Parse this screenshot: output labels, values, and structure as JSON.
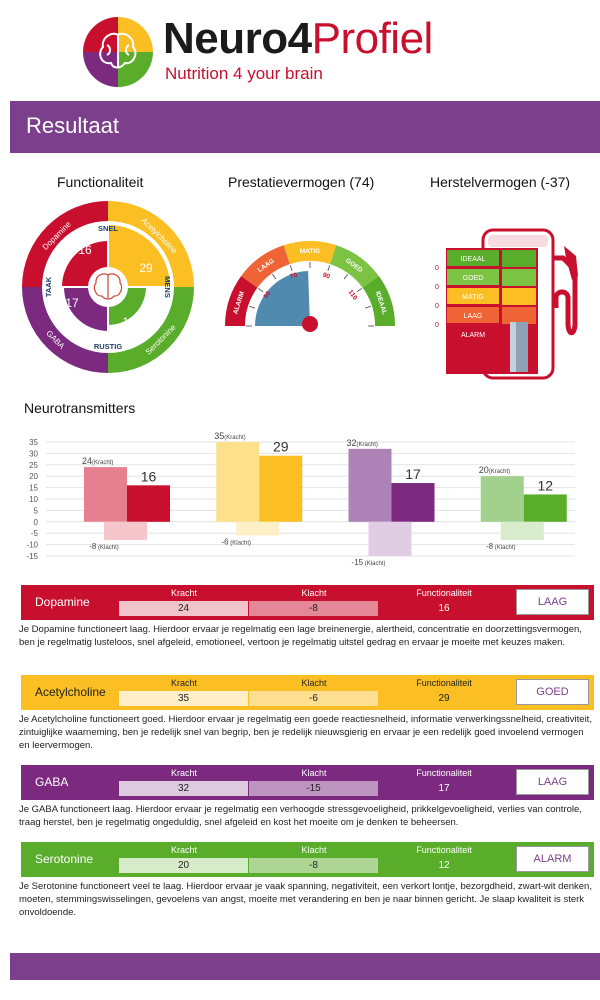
{
  "header": {
    "brand_part1": "Neuro4",
    "brand_part2": "Profiel",
    "tagline": "Nutrition 4 your brain"
  },
  "banner": {
    "title": "Resultaat"
  },
  "panels": {
    "functionaliteit": {
      "title": "Functionaliteit",
      "outer_labels": [
        "Dopamine",
        "Acetylcholine",
        "Serotonine",
        "GABA"
      ],
      "inner_labels": [
        "SNEL",
        "MENS",
        "RUSTIG",
        "TAAK"
      ],
      "values": {
        "dopamine": "16",
        "acetylcholine": "29",
        "serotonine": "12",
        "gaba": "17"
      }
    },
    "prestatie": {
      "title": "Prestatievermogen (74)",
      "value": 74,
      "zones": [
        "ALARM",
        "LAAG",
        "MATIG",
        "GOED",
        "IDEAAL"
      ],
      "ticks": [
        "50",
        "70",
        "90",
        "110"
      ]
    },
    "herstel": {
      "title": "Herstelvermogen (-37)",
      "levels": [
        {
          "label": "IDEAAL",
          "count": "0"
        },
        {
          "label": "GOED",
          "count": "0"
        },
        {
          "label": "MATIG",
          "count": "0"
        },
        {
          "label": "LAAG",
          "count": "0"
        },
        {
          "label": "ALARM",
          "count": ""
        }
      ]
    }
  },
  "neuro_section": {
    "title": "Neurotransmitters"
  },
  "chart_data": {
    "type": "bar",
    "title": "",
    "categories": [
      "Dopamine",
      "Acetylcholine",
      "GABA",
      "Serotonine"
    ],
    "series": [
      {
        "name": "Kracht",
        "values": [
          24,
          35,
          32,
          20
        ]
      },
      {
        "name": "",
        "values": [
          16,
          29,
          17,
          12
        ]
      },
      {
        "name": "Klacht",
        "values": [
          -8,
          -6,
          -15,
          -8
        ]
      }
    ],
    "y_ticks": [
      "35",
      "30",
      "25",
      "20",
      "15",
      "10",
      "5",
      "0",
      "-5",
      "-10",
      "-15"
    ],
    "ylim": [
      -15,
      35
    ],
    "grid": true,
    "kracht_suffix": "(Kracht)",
    "klacht_suffix": "(Klacht)",
    "colors": {
      "Dopamine": [
        "#e6808f",
        "#c8102e",
        "#f5c6cc"
      ],
      "Acetylcholine": [
        "#fde08a",
        "#fbbf24",
        "#fdf0c6"
      ],
      "GABA": [
        "#ad82b7",
        "#7b2a80",
        "#e0cde4"
      ],
      "Serotonine": [
        "#a2d18d",
        "#5aad2b",
        "#d9eccd"
      ]
    }
  },
  "column_headers": {
    "kracht": "Kracht",
    "klacht": "Klacht",
    "functionaliteit": "Functionaliteit"
  },
  "cards": [
    {
      "name": "Dopamine",
      "kracht": "24",
      "klacht": "-8",
      "functionaliteit": "16",
      "status": "LAAG",
      "color": "#c8102e",
      "status_color": "#7b3f8c",
      "text": "Je Dopamine functioneert laag. Hierdoor ervaar je regelmatig een lage breinenergie, alertheid, concentratie en doorzettingsvermogen, ben je regelmatig lusteloos, snel afgeleid, emotioneel, vertoon je regelmatig uitstel gedrag en ervaar je moeite met keuzes maken."
    },
    {
      "name": "Acetylcholine",
      "kracht": "35",
      "klacht": "-6",
      "functionaliteit": "29",
      "status": "GOED",
      "color": "#fbbf24",
      "status_color": "#7b3f8c",
      "text": "Je Acetylcholine functioneert goed. Hierdoor ervaar je regelmatig een goede reactiesnelheid, informatie verwerkingssnelheid, creativiteit, zintuiglijke waarneming, ben je redelijk snel van begrip, ben je redelijk nieuwsgierig en ervaar je een redelijk goed invoelend vermogen en leervermogen."
    },
    {
      "name": "GABA",
      "kracht": "32",
      "klacht": "-15",
      "functionaliteit": "17",
      "status": "LAAG",
      "color": "#7b2a80",
      "status_color": "#7b3f8c",
      "text": "Je GABA functioneert laag. Hierdoor ervaar je regelmatig een verhoogde stressgevoeligheid, prikkelgevoeligheid, verlies van controle, traag herstel, ben je regelmatig ongeduldig, snel afgeleid en kost het moeite om je denken te beheersen."
    },
    {
      "name": "Serotonine",
      "kracht": "20",
      "klacht": "-8",
      "functionaliteit": "12",
      "status": "ALARM",
      "color": "#5aad2b",
      "status_color": "#7b3f8c",
      "text": "Je Serotonine functioneert veel te laag. Hierdoor ervaar je vaak spanning, negativiteit, een verkort lontje, bezorgdheid, zwart-wit denken, moeten, stemmingswisselingen, gevoelens van angst, moeite met verandering en ben je naar binnen gericht. Je slaap kwaliteit is sterk onvoldoende."
    }
  ]
}
